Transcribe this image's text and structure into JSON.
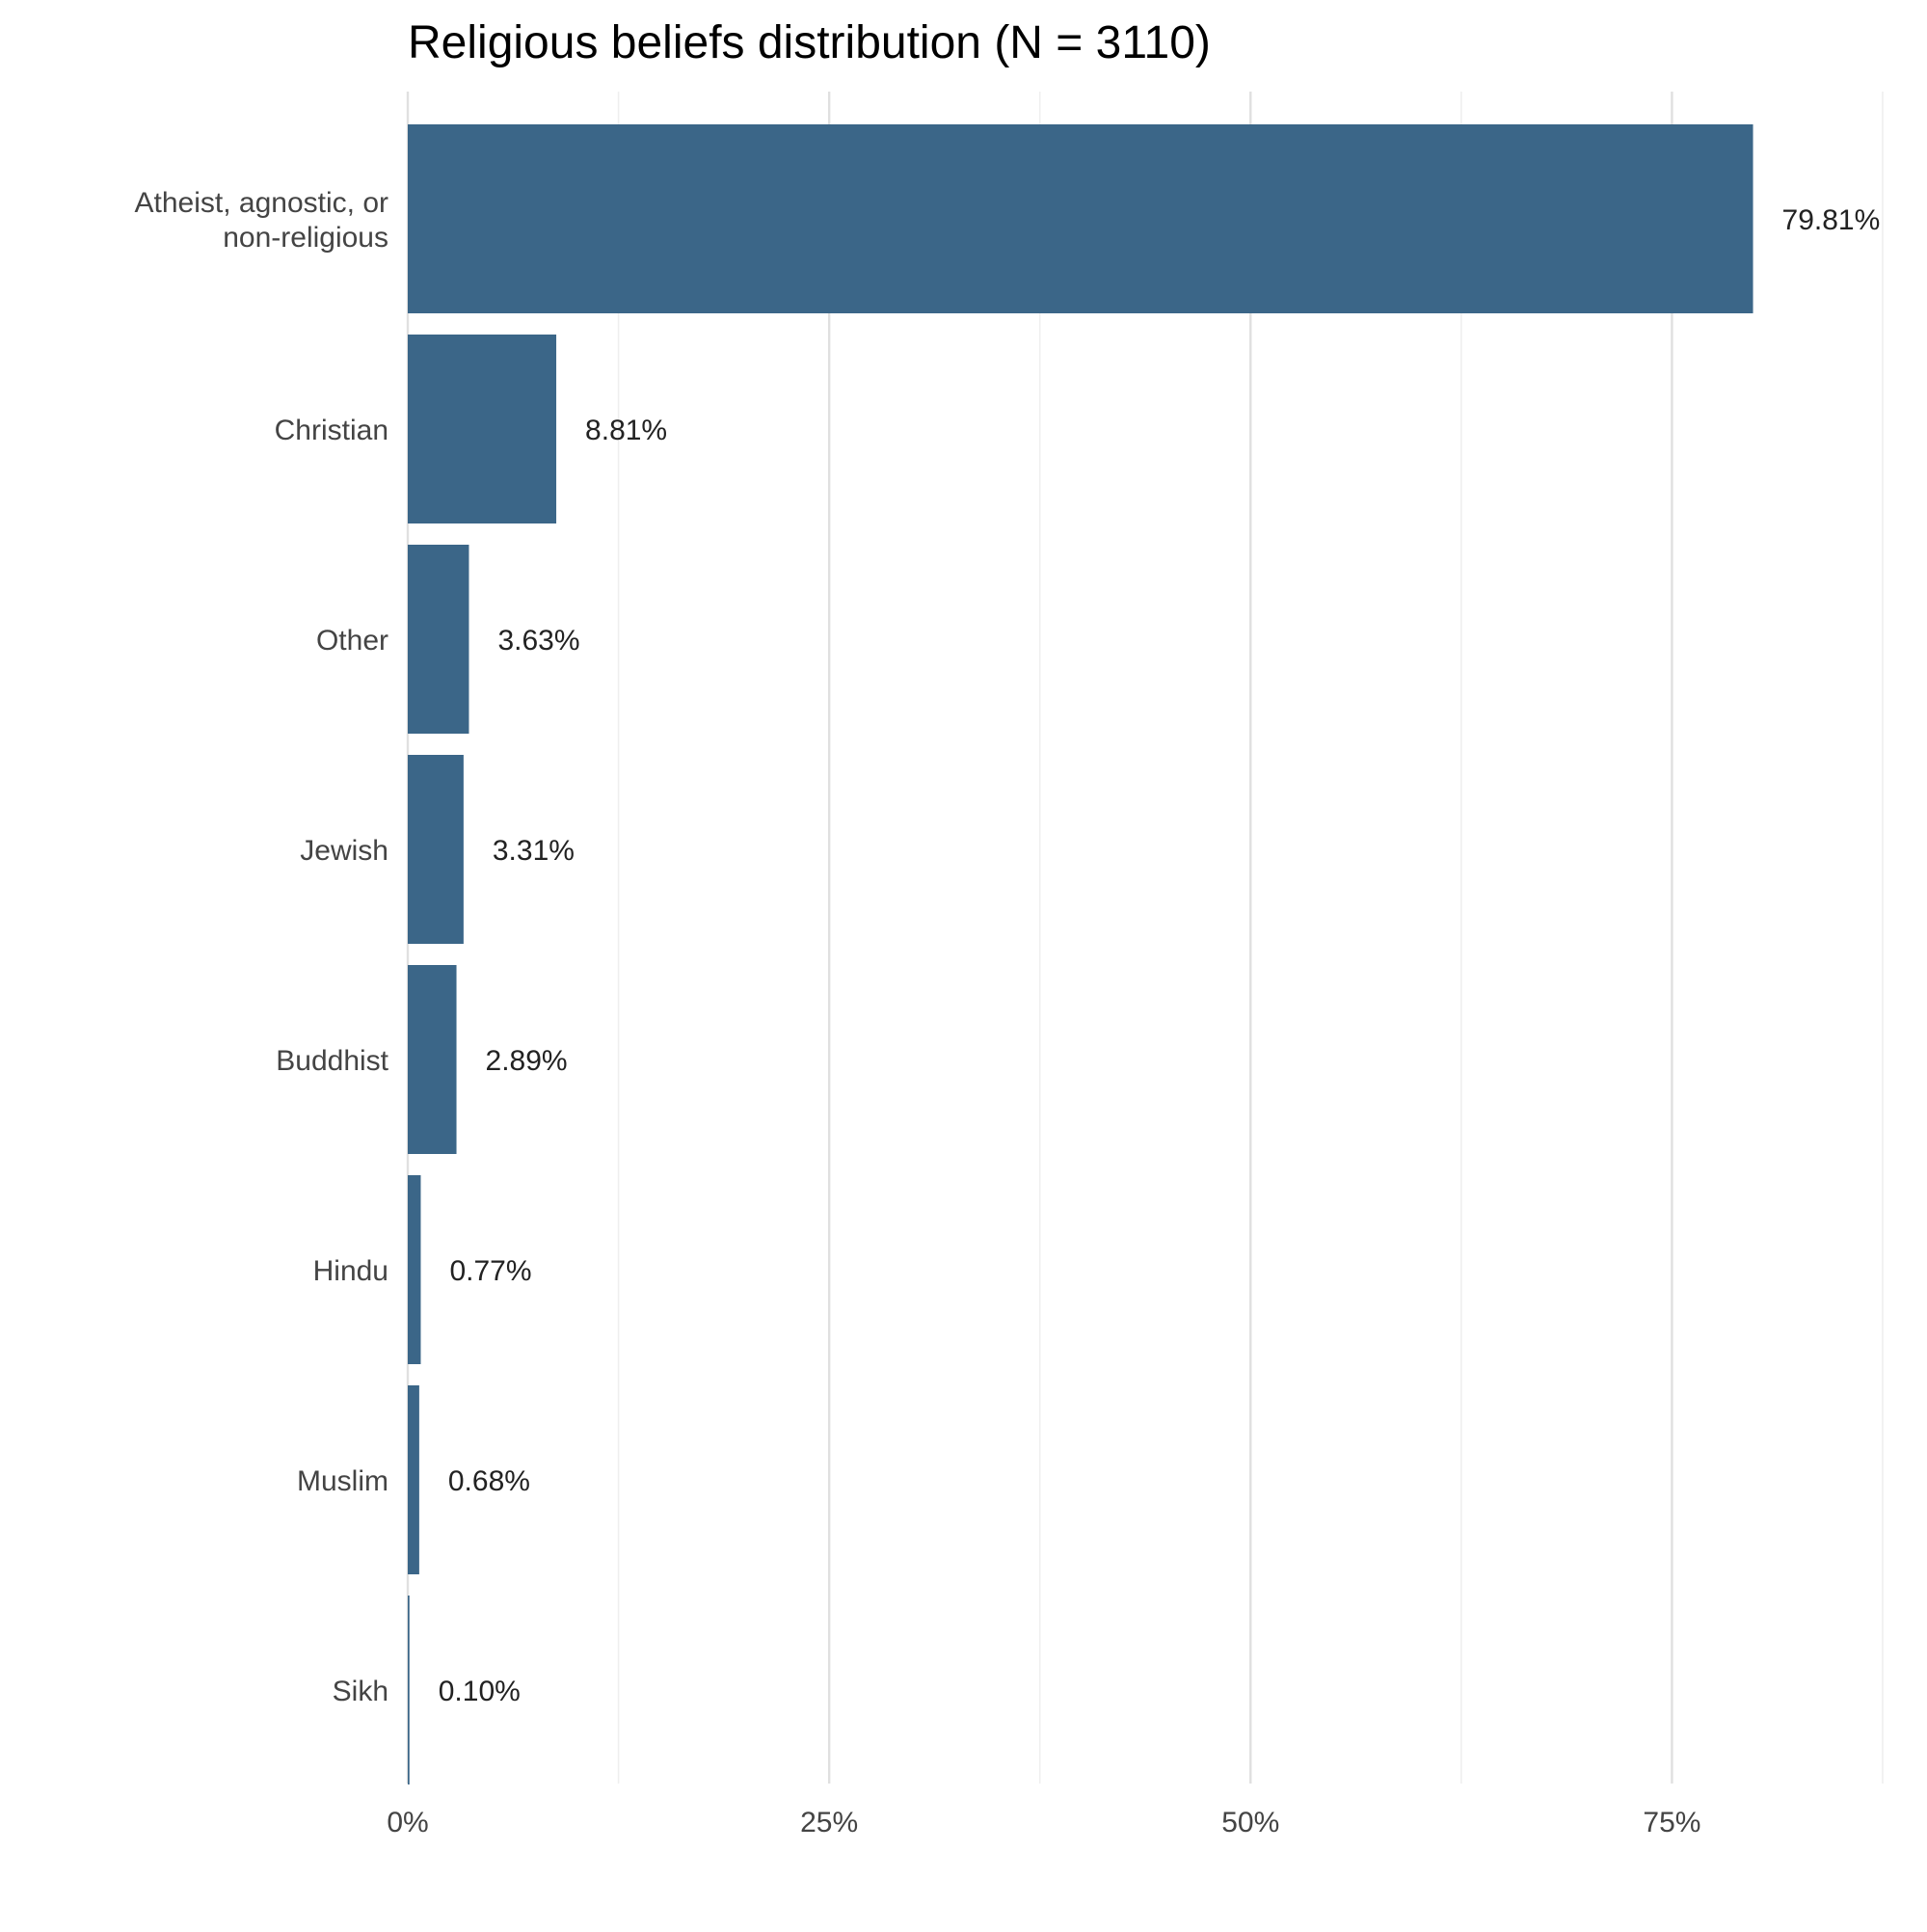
{
  "chart_data": {
    "type": "bar",
    "orientation": "horizontal",
    "title": "Religious beliefs distribution (N = 3110)",
    "xlabel": "",
    "ylabel": "",
    "categories": [
      [
        "Atheist, agnostic, or",
        "non-religious"
      ],
      [
        "Christian"
      ],
      [
        "Other"
      ],
      [
        "Jewish"
      ],
      [
        "Buddhist"
      ],
      [
        "Hindu"
      ],
      [
        "Muslim"
      ],
      [
        "Sikh"
      ]
    ],
    "values": [
      79.81,
      8.81,
      3.63,
      3.31,
      2.89,
      0.77,
      0.68,
      0.1
    ],
    "value_labels": [
      "79.81%",
      "8.81%",
      "3.63%",
      "3.31%",
      "2.89%",
      "0.77%",
      "0.68%",
      "0.10%"
    ],
    "xlim": [
      0,
      87.5
    ],
    "x_ticks": [
      0,
      25,
      50,
      75
    ],
    "x_tick_labels": [
      "0%",
      "25%",
      "50%",
      "75%"
    ],
    "grid": "vertical",
    "legend": "none",
    "colors": {
      "bar": "#3b6688",
      "grid_major": "#e0e0e0",
      "grid_minor": "#efefef"
    }
  }
}
